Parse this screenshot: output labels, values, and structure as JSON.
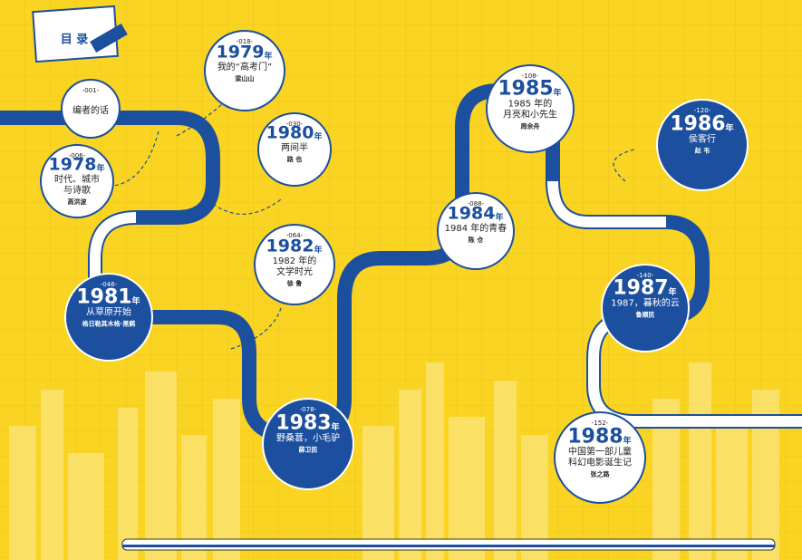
{
  "header": {
    "title": "目 录"
  },
  "entries": [
    {
      "page": "-001-",
      "title_lines": [
        "编者的话"
      ]
    },
    {
      "page": "-006-",
      "year": 1978,
      "unit": "年",
      "title_lines": [
        "时代、城市",
        "与诗歌"
      ],
      "author": "高洪波"
    },
    {
      "page": "-018-",
      "year": 1979,
      "unit": "年",
      "title_lines": [
        "我的“高考门”"
      ],
      "author": "梁山山"
    },
    {
      "page": "-030-",
      "year": 1980,
      "unit": "年",
      "title_lines": [
        "两间半"
      ],
      "author": "路 也"
    },
    {
      "page": "-046-",
      "year": 1981,
      "unit": "年",
      "title_lines": [
        "从草原开始"
      ],
      "author": "格日勒其木格·黑鹤"
    },
    {
      "page": "-064-",
      "year": 1982,
      "unit": "年",
      "title_lines": [
        "1982 年的",
        "文学时光"
      ],
      "author": "徐 鲁"
    },
    {
      "page": "-078-",
      "year": 1983,
      "unit": "年",
      "title_lines": [
        "野桑葚，小毛驴"
      ],
      "author": "薛卫民"
    },
    {
      "page": "-088-",
      "year": 1984,
      "unit": "年",
      "title_lines": [
        "1984 年的青春"
      ],
      "author": "陈 仓"
    },
    {
      "page": "-108-",
      "year": 1985,
      "unit": "年",
      "title_lines": [
        "1985 年的",
        "月亮和小先生"
      ],
      "author": "周余舟"
    },
    {
      "page": "-120-",
      "year": 1986,
      "unit": "年",
      "title_lines": [
        "侯客行"
      ],
      "author": "赵 韦"
    },
    {
      "page": "-140-",
      "year": 1987,
      "unit": "年",
      "title_lines": [
        "1987，暮秋的云"
      ],
      "author": "鲁顺民"
    },
    {
      "page": "-152-",
      "year": 1988,
      "unit": "年",
      "title_lines": [
        "中国第一部儿童",
        "科幻电影诞生记"
      ],
      "author": "张之路"
    }
  ]
}
